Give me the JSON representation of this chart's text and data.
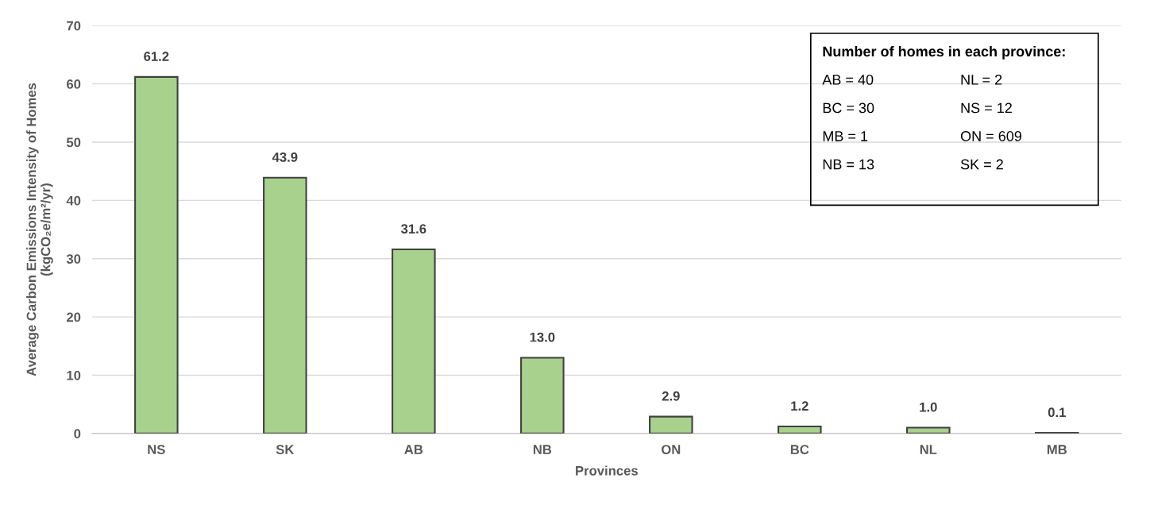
{
  "chart_data": {
    "type": "bar",
    "xlabel": "Provinces",
    "ylabel": "Average Carbon Emissions Intensity of Homes\n(kgCO₂e/m²/yr)",
    "categories": [
      "NS",
      "SK",
      "AB",
      "NB",
      "ON",
      "BC",
      "NL",
      "MB"
    ],
    "values": [
      61.2,
      43.9,
      31.6,
      13.0,
      2.9,
      1.2,
      1.0,
      0.1
    ],
    "color": "#a9d18e",
    "ylim": [
      0,
      70
    ],
    "yticks": [
      0,
      10,
      20,
      30,
      40,
      50,
      60,
      70
    ],
    "value_labels": [
      "61.2",
      "43.9",
      "31.6",
      "13.0",
      "2.9",
      "1.2",
      "1.0",
      "0.1"
    ],
    "grid": "y",
    "annotations": [
      "Number of homes in each province:",
      "AB = 40",
      "BC = 30",
      "MB = 1",
      "NB = 13",
      "NL = 2",
      "NS = 12",
      "ON = 609",
      "SK = 2"
    ]
  }
}
